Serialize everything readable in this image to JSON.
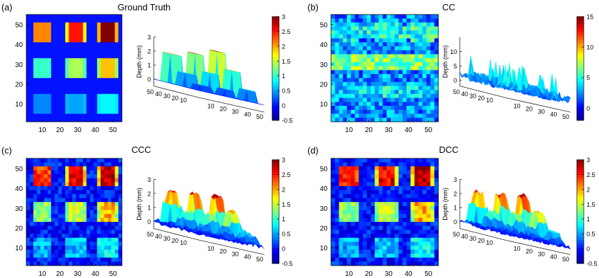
{
  "colors": {
    "jet": [
      "#00008f",
      "#0000ff",
      "#0080ff",
      "#00ffff",
      "#80ff80",
      "#ffff00",
      "#ff8000",
      "#ff0000",
      "#800000"
    ],
    "axis": "#000000",
    "background": "#ffffff"
  },
  "chart_data": [
    {
      "panel_label": "(a)",
      "title": "Ground Truth",
      "heatmap": {
        "type": "heatmap",
        "x_ticks": [
          "10",
          "20",
          "30",
          "40",
          "50"
        ],
        "y_ticks": [
          "50",
          "40",
          "30",
          "20",
          "10"
        ],
        "xlim": [
          1,
          55
        ],
        "ylim": [
          1,
          55
        ],
        "grid": false,
        "noise": 0,
        "edge_highlight": true,
        "background_value": 0,
        "squares": [
          {
            "x": 10,
            "y": 46,
            "value": 2.1
          },
          {
            "x": 29,
            "y": 46,
            "value": 2.5
          },
          {
            "x": 47,
            "y": 46,
            "value": 3.0
          },
          {
            "x": 10,
            "y": 28,
            "value": 1.0
          },
          {
            "x": 29,
            "y": 28,
            "value": 1.4
          },
          {
            "x": 47,
            "y": 28,
            "value": 1.9
          },
          {
            "x": 10,
            "y": 10,
            "value": 0.4
          },
          {
            "x": 29,
            "y": 10,
            "value": 0.5
          },
          {
            "x": 47,
            "y": 10,
            "value": 0.8
          }
        ]
      },
      "surface": {
        "type": "surface",
        "zlabel": "Depth (mm)",
        "z_ticks": [
          "0",
          "1",
          "2",
          "3"
        ],
        "x_ticks": [
          "10",
          "20",
          "30",
          "40",
          "50"
        ],
        "y_ticks": [
          "50",
          "40",
          "30",
          "20",
          "10"
        ],
        "zlim": [
          -0.5,
          3
        ],
        "style": "smooth"
      },
      "colorbar": {
        "ticks": [
          "3",
          "2.5",
          "2",
          "1.5",
          "1",
          "0.5",
          "0",
          "-0.5"
        ],
        "range": [
          -0.5,
          3
        ]
      }
    },
    {
      "panel_label": "(b)",
      "title": "CC",
      "heatmap": {
        "type": "heatmap",
        "x_ticks": [
          "10",
          "20",
          "30",
          "40",
          "50"
        ],
        "y_ticks": [
          "50",
          "40",
          "30",
          "20",
          "10"
        ],
        "xlim": [
          1,
          55
        ],
        "ylim": [
          1,
          55
        ],
        "grid": false,
        "noise": 2.2,
        "edge_highlight": false,
        "background_value": 2.5,
        "bands": [
          {
            "y": 30,
            "value": 6.5,
            "width": 2
          },
          {
            "y": 46,
            "value": 4.5,
            "width": 1
          },
          {
            "y": 16,
            "value": 4.0,
            "width": 1
          }
        ],
        "squares": [
          {
            "x": 10,
            "y": 46,
            "value": 4.0
          },
          {
            "x": 29,
            "y": 46,
            "value": 4.5
          },
          {
            "x": 47,
            "y": 46,
            "value": 5.0
          }
        ]
      },
      "surface": {
        "type": "surface",
        "zlabel": "Depth (mm)",
        "z_ticks": [
          "0",
          "5",
          "10"
        ],
        "x_ticks": [
          "10",
          "20",
          "30",
          "40",
          "50"
        ],
        "y_ticks": [
          "50",
          "40",
          "30",
          "20",
          "10"
        ],
        "zlim": [
          -2,
          15
        ],
        "style": "noisy"
      },
      "colorbar": {
        "ticks": [
          "15",
          "10",
          "5",
          "0"
        ],
        "range": [
          -2,
          15
        ]
      }
    },
    {
      "panel_label": "(c)",
      "title": "CCC",
      "heatmap": {
        "type": "heatmap",
        "x_ticks": [
          "10",
          "20",
          "30",
          "40",
          "50"
        ],
        "y_ticks": [
          "50",
          "40",
          "30",
          "20",
          "10"
        ],
        "xlim": [
          1,
          55
        ],
        "ylim": [
          1,
          55
        ],
        "grid": false,
        "noise": 0.3,
        "edge_highlight": true,
        "background_value": 0,
        "squares": [
          {
            "x": 10,
            "y": 46,
            "value": 2.4
          },
          {
            "x": 29,
            "y": 46,
            "value": 2.6
          },
          {
            "x": 47,
            "y": 46,
            "value": 2.8
          },
          {
            "x": 10,
            "y": 28,
            "value": 1.3
          },
          {
            "x": 29,
            "y": 28,
            "value": 1.5
          },
          {
            "x": 47,
            "y": 28,
            "value": 2.0
          },
          {
            "x": 10,
            "y": 10,
            "value": 0.5
          },
          {
            "x": 29,
            "y": 10,
            "value": 0.6
          },
          {
            "x": 47,
            "y": 10,
            "value": 0.8
          }
        ]
      },
      "surface": {
        "type": "surface",
        "zlabel": "Depth (mm)",
        "z_ticks": [
          "0",
          "1",
          "2",
          "3"
        ],
        "x_ticks": [
          "10",
          "20",
          "30",
          "40",
          "50"
        ],
        "y_ticks": [
          "50",
          "40",
          "30",
          "20",
          "10"
        ],
        "zlim": [
          -0.5,
          3
        ],
        "style": "peaks"
      },
      "colorbar": {
        "ticks": [
          "3",
          "2.5",
          "2",
          "1.5",
          "1",
          "0.5",
          "0",
          "-0.5"
        ],
        "range": [
          -0.5,
          3
        ]
      }
    },
    {
      "panel_label": "(d)",
      "title": "DCC",
      "heatmap": {
        "type": "heatmap",
        "x_ticks": [
          "10",
          "20",
          "30",
          "40",
          "50"
        ],
        "y_ticks": [
          "50",
          "40",
          "30",
          "20",
          "10"
        ],
        "xlim": [
          1,
          55
        ],
        "ylim": [
          1,
          55
        ],
        "grid": false,
        "noise": 0.3,
        "edge_highlight": true,
        "background_value": 0,
        "squares": [
          {
            "x": 10,
            "y": 46,
            "value": 2.4
          },
          {
            "x": 29,
            "y": 46,
            "value": 2.6
          },
          {
            "x": 47,
            "y": 46,
            "value": 2.9
          },
          {
            "x": 10,
            "y": 28,
            "value": 1.3
          },
          {
            "x": 29,
            "y": 28,
            "value": 1.5
          },
          {
            "x": 47,
            "y": 28,
            "value": 2.0
          },
          {
            "x": 10,
            "y": 10,
            "value": 0.5
          },
          {
            "x": 29,
            "y": 10,
            "value": 0.6
          },
          {
            "x": 47,
            "y": 10,
            "value": 0.8
          }
        ]
      },
      "surface": {
        "type": "surface",
        "zlabel": "Depth (mm)",
        "z_ticks": [
          "0",
          "1",
          "2",
          "3"
        ],
        "x_ticks": [
          "10",
          "20",
          "30",
          "40",
          "50"
        ],
        "y_ticks": [
          "50",
          "40",
          "30",
          "20",
          "10"
        ],
        "zlim": [
          -0.5,
          3
        ],
        "style": "peaks"
      },
      "colorbar": {
        "ticks": [
          "3",
          "2.5",
          "2",
          "1.5",
          "1",
          "0.5",
          "0",
          "-0.5"
        ],
        "range": [
          -0.5,
          3
        ]
      }
    }
  ]
}
